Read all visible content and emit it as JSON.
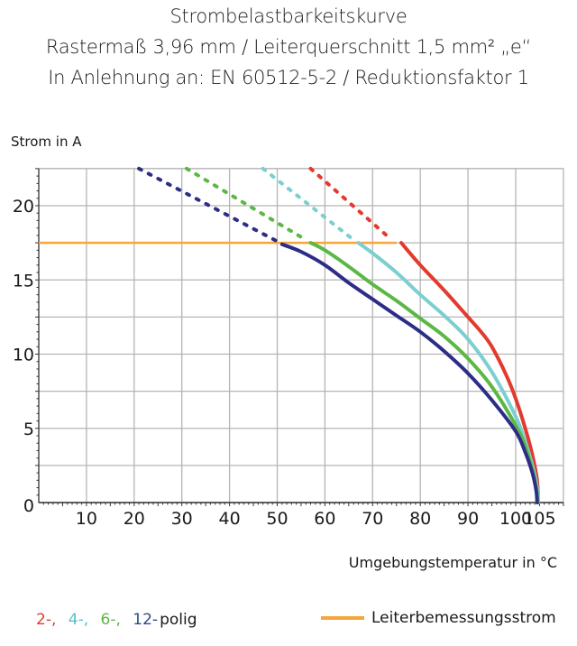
{
  "chart_data": {
    "type": "line",
    "title": "Strombelastbarkeitskurve",
    "subtitle_lines": [
      "Rastermaß 3,96 mm / Leiterquerschnitt 1,5 mm² „e“",
      "In Anlehnung an: EN 60512-5-2 / Reduktionsfaktor 1"
    ],
    "xlabel": "Umgebungstemperatur in °C",
    "ylabel": "Strom in A",
    "xlim": [
      0,
      110
    ],
    "ylim": [
      0,
      22.5
    ],
    "x_ticks": [
      10,
      20,
      30,
      40,
      50,
      60,
      70,
      80,
      90,
      100,
      105
    ],
    "y_ticks": [
      0,
      5,
      10,
      15,
      20
    ],
    "grid": true,
    "legend_placement": "bottom",
    "series": [
      {
        "name": "2-,",
        "color": "#e23b2e",
        "points": [
          [
            76,
            17.5
          ],
          [
            80,
            16
          ],
          [
            85,
            14.3
          ],
          [
            90,
            12.5
          ],
          [
            93,
            11.4
          ],
          [
            95,
            10.5
          ],
          [
            98,
            8.6
          ],
          [
            100,
            7
          ],
          [
            102,
            5
          ],
          [
            103.5,
            3.2
          ],
          [
            104.5,
            1.5
          ],
          [
            104.7,
            0
          ]
        ],
        "extrapolated": [
          [
            57,
            22.5
          ],
          [
            74,
            17.7
          ]
        ]
      },
      {
        "name": "4-,",
        "color": "#7ccfd1",
        "points": [
          [
            67,
            17.5
          ],
          [
            70,
            16.8
          ],
          [
            75,
            15.5
          ],
          [
            80,
            14
          ],
          [
            85,
            12.6
          ],
          [
            90,
            11
          ],
          [
            95,
            8.8
          ],
          [
            100,
            5.8
          ],
          [
            102,
            4.1
          ],
          [
            103.5,
            2.5
          ],
          [
            104.4,
            1.2
          ],
          [
            104.7,
            0
          ]
        ],
        "extrapolated": [
          [
            47,
            22.5
          ],
          [
            66,
            17.7
          ]
        ]
      },
      {
        "name": "6-,",
        "color": "#5cb845",
        "points": [
          [
            57,
            17.5
          ],
          [
            60,
            17
          ],
          [
            65,
            15.9
          ],
          [
            70,
            14.7
          ],
          [
            75,
            13.6
          ],
          [
            80,
            12.4
          ],
          [
            85,
            11.2
          ],
          [
            90,
            9.7
          ],
          [
            95,
            7.8
          ],
          [
            100,
            5.2
          ],
          [
            102,
            3.8
          ],
          [
            103.5,
            2.2
          ],
          [
            104.3,
            1
          ],
          [
            104.6,
            0
          ]
        ],
        "extrapolated": [
          [
            31,
            22.5
          ],
          [
            56,
            17.7
          ]
        ]
      },
      {
        "name": "12-",
        "color": "#2d2d88",
        "points": [
          [
            51,
            17.4
          ],
          [
            55,
            16.9
          ],
          [
            60,
            16
          ],
          [
            65,
            14.8
          ],
          [
            70,
            13.7
          ],
          [
            75,
            12.6
          ],
          [
            80,
            11.5
          ],
          [
            85,
            10.2
          ],
          [
            90,
            8.7
          ],
          [
            95,
            6.9
          ],
          [
            100,
            4.8
          ],
          [
            102,
            3.4
          ],
          [
            103.5,
            2
          ],
          [
            104.3,
            0.8
          ],
          [
            104.5,
            0
          ]
        ],
        "extrapolated": [
          [
            21,
            22.5
          ],
          [
            50,
            17.6
          ]
        ]
      }
    ],
    "rated_current": {
      "name": "Leiterbemessungsstrom",
      "color": "#f5a63c",
      "value": 17.5,
      "x_range": [
        0,
        75
      ]
    },
    "legend_suffix": "polig"
  }
}
